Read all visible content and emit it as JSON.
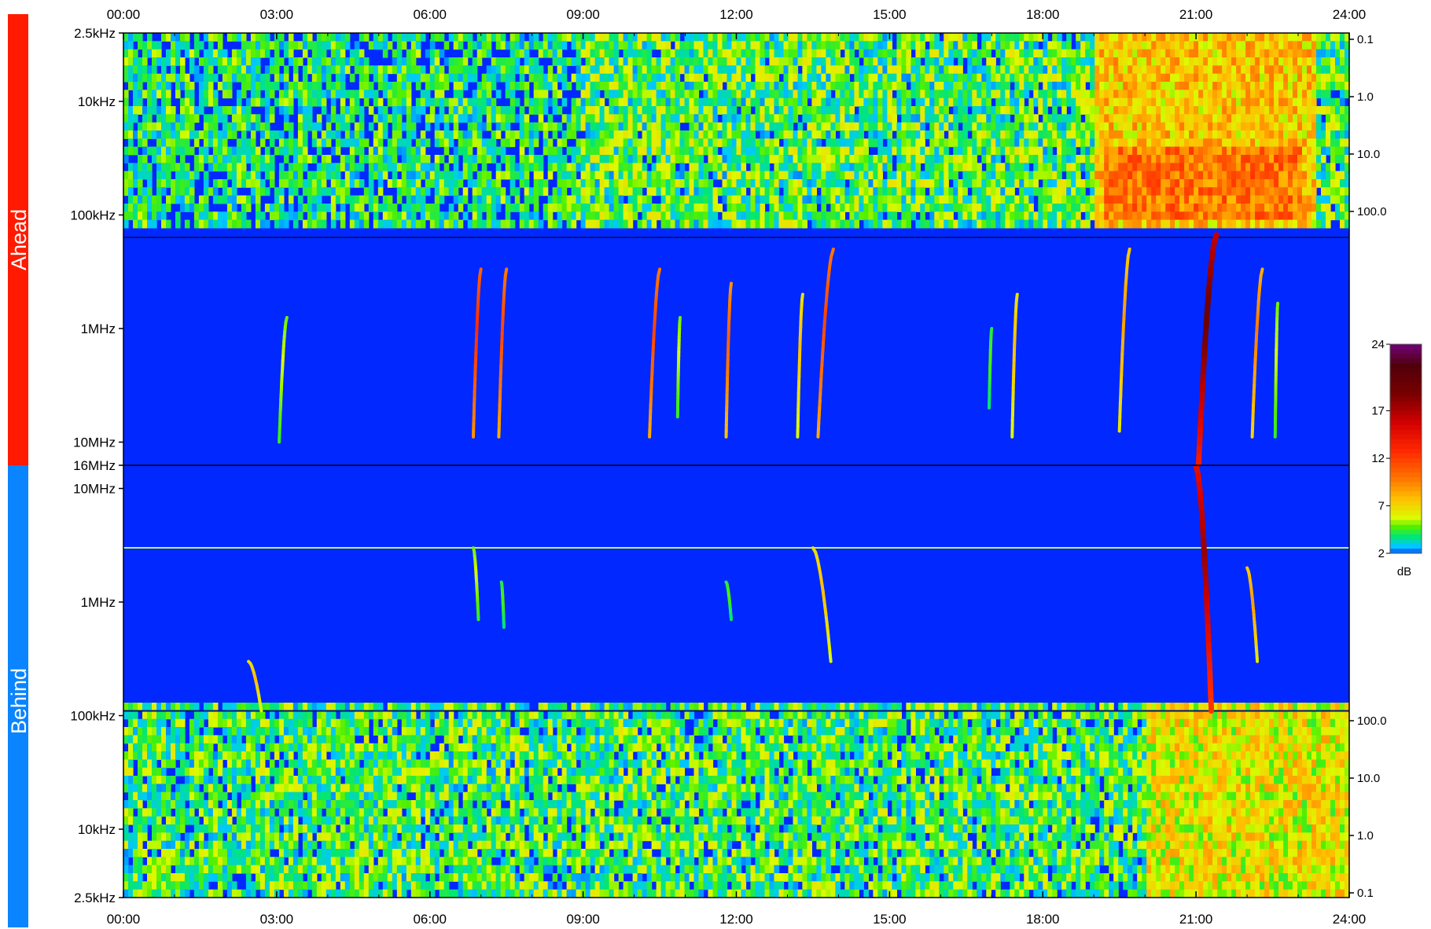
{
  "chart_data": {
    "type": "heatmap",
    "x": {
      "ticks": [
        "00:00",
        "03:00",
        "06:00",
        "09:00",
        "12:00",
        "15:00",
        "18:00",
        "21:00",
        "24:00"
      ],
      "range_hours": [
        0,
        24
      ]
    },
    "panels": [
      {
        "name": "Ahead",
        "color": "#ff1a00",
        "freq_ticks": [
          "2.5kHz",
          "10kHz",
          "100kHz",
          "1MHz",
          "10MHz",
          "16MHz"
        ],
        "flux_ticks": [
          "0.1",
          "1.0",
          "10.0",
          "100.0"
        ]
      },
      {
        "name": "Behind",
        "color": "#0a84ff",
        "freq_ticks": [
          "10MHz",
          "1MHz",
          "100kHz",
          "10kHz",
          "2.5kHz"
        ],
        "flux_ticks": [
          "100.0",
          "10.0",
          "1.0",
          "0.1"
        ]
      }
    ],
    "colorbar": {
      "ticks": [
        "24",
        "17",
        "12",
        "7",
        "2"
      ],
      "range": [
        2,
        24
      ],
      "unit": "dB"
    },
    "events": [
      {
        "panel": "Ahead",
        "start_h": 3.2,
        "end_h": 3.05,
        "f_start": 0.8,
        "f_end": 10,
        "peak_db": 6
      },
      {
        "panel": "Ahead",
        "start_h": 7.0,
        "end_h": 6.85,
        "f_start": 0.3,
        "f_end": 9,
        "peak_db": 13
      },
      {
        "panel": "Ahead",
        "start_h": 7.5,
        "end_h": 7.35,
        "f_start": 0.3,
        "f_end": 9,
        "peak_db": 12
      },
      {
        "panel": "Ahead",
        "start_h": 10.5,
        "end_h": 10.3,
        "f_start": 0.3,
        "f_end": 9,
        "peak_db": 12
      },
      {
        "panel": "Ahead",
        "start_h": 10.9,
        "end_h": 10.85,
        "f_start": 0.8,
        "f_end": 6,
        "peak_db": 6
      },
      {
        "panel": "Ahead",
        "start_h": 11.9,
        "end_h": 11.8,
        "f_start": 0.4,
        "f_end": 9,
        "peak_db": 11
      },
      {
        "panel": "Ahead",
        "start_h": 13.3,
        "end_h": 13.2,
        "f_start": 0.5,
        "f_end": 9,
        "peak_db": 8
      },
      {
        "panel": "Ahead",
        "start_h": 13.9,
        "end_h": 13.6,
        "f_start": 0.2,
        "f_end": 9,
        "peak_db": 12
      },
      {
        "panel": "Ahead",
        "start_h": 17.0,
        "end_h": 16.95,
        "f_start": 1,
        "f_end": 5,
        "peak_db": 5
      },
      {
        "panel": "Ahead",
        "start_h": 17.5,
        "end_h": 17.4,
        "f_start": 0.5,
        "f_end": 9,
        "peak_db": 8
      },
      {
        "panel": "Ahead",
        "start_h": 19.7,
        "end_h": 19.5,
        "f_start": 0.2,
        "f_end": 8,
        "peak_db": 9
      },
      {
        "panel": "Ahead",
        "start_h": 21.4,
        "end_h": 21.05,
        "f_start": 0.15,
        "f_end": 16,
        "peak_db": 20
      },
      {
        "panel": "Ahead",
        "start_h": 22.3,
        "end_h": 22.1,
        "f_start": 0.3,
        "f_end": 9,
        "peak_db": 10
      },
      {
        "panel": "Ahead",
        "start_h": 22.6,
        "end_h": 22.55,
        "f_start": 0.6,
        "f_end": 9,
        "peak_db": 6
      },
      {
        "panel": "Behind",
        "start_h": 2.45,
        "end_h": 2.7,
        "f_start": 0.3,
        "f_end": 0.11,
        "peak_db": 8
      },
      {
        "panel": "Behind",
        "start_h": 6.85,
        "end_h": 6.95,
        "f_start": 3,
        "f_end": 0.7,
        "peak_db": 6
      },
      {
        "panel": "Behind",
        "start_h": 7.4,
        "end_h": 7.45,
        "f_start": 1.5,
        "f_end": 0.6,
        "peak_db": 5
      },
      {
        "panel": "Behind",
        "start_h": 11.8,
        "end_h": 11.9,
        "f_start": 1.5,
        "f_end": 0.7,
        "peak_db": 5
      },
      {
        "panel": "Behind",
        "start_h": 13.5,
        "end_h": 13.85,
        "f_start": 3,
        "f_end": 0.3,
        "peak_db": 8
      },
      {
        "panel": "Behind",
        "start_h": 21.0,
        "end_h": 21.3,
        "f_start": 16,
        "f_end": 0.11,
        "peak_db": 18
      },
      {
        "panel": "Behind",
        "start_h": 22.0,
        "end_h": 22.2,
        "f_start": 2,
        "f_end": 0.3,
        "peak_db": 9
      }
    ]
  }
}
